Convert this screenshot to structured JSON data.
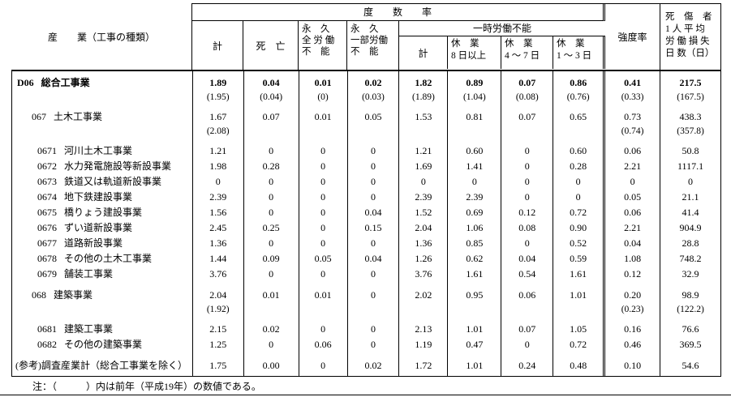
{
  "header": {
    "industry": "産　　業（工事の種類）",
    "frequency_group": "度　　数　　率",
    "col_total": "計",
    "col_death": "死　亡",
    "col_perm_total": "永　久\n全 労 働\n不　能",
    "col_perm_partial": "永　久\n一部労働\n不　能",
    "temp_group": "一時労働不能",
    "col_temp_total": "計",
    "col_temp_8plus": "休　業\n8 日以上",
    "col_temp_4to7": "休　業\n4 ～ 7 日",
    "col_temp_1to3": "休　業\n1 ～ 3 日",
    "col_severity": "強度率",
    "col_days_lost": "死　傷　者\n1 人 平 均\n労 働 損 失\n日 数（日）"
  },
  "rows": [
    {
      "code": "D06",
      "name": "総合工事業",
      "level": "0",
      "bold": true,
      "gap": false,
      "values": [
        "1.89",
        "0.04",
        "0.01",
        "0.02",
        "1.82",
        "0.89",
        "0.07",
        "0.86",
        "0.41",
        "217.5"
      ],
      "prev": [
        "(1.95)",
        "(0.04)",
        "(0)",
        "(0.03)",
        "(1.89)",
        "(1.04)",
        "(0.08)",
        "(0.76)",
        "(0.33)",
        "(167.5)"
      ]
    },
    {
      "code": "067",
      "name": "土木工事業",
      "level": "1",
      "bold": false,
      "gap": true,
      "values": [
        "1.67",
        "0.07",
        "0.01",
        "0.05",
        "1.53",
        "0.81",
        "0.07",
        "0.65",
        "0.73",
        "438.3"
      ],
      "prev": [
        "(2.08)",
        "",
        "",
        "",
        "",
        "",
        "",
        "",
        "(0.74)",
        "(357.8)"
      ]
    },
    {
      "code": "0671",
      "name": "河川土木工事業",
      "level": "2",
      "bold": false,
      "gap": true,
      "values": [
        "1.21",
        "0",
        "0",
        "0",
        "1.21",
        "0.60",
        "0",
        "0.60",
        "0.06",
        "50.8"
      ]
    },
    {
      "code": "0672",
      "name": "水力発電施設等新設事業",
      "level": "2",
      "bold": false,
      "gap": false,
      "values": [
        "1.98",
        "0.28",
        "0",
        "0",
        "1.69",
        "1.41",
        "0",
        "0.28",
        "2.21",
        "1117.1"
      ]
    },
    {
      "code": "0673",
      "name": "鉄道又は軌道新設事業",
      "level": "2",
      "bold": false,
      "gap": false,
      "values": [
        "0",
        "0",
        "0",
        "0",
        "0",
        "0",
        "0",
        "0",
        "0",
        "0"
      ]
    },
    {
      "code": "0674",
      "name": "地下鉄建設事業",
      "level": "2",
      "bold": false,
      "gap": false,
      "values": [
        "2.39",
        "0",
        "0",
        "0",
        "2.39",
        "2.39",
        "0",
        "0",
        "0.05",
        "21.1"
      ]
    },
    {
      "code": "0675",
      "name": "橋りょう建設事業",
      "level": "2",
      "bold": false,
      "gap": false,
      "values": [
        "1.56",
        "0",
        "0",
        "0.04",
        "1.52",
        "0.69",
        "0.12",
        "0.72",
        "0.06",
        "41.4"
      ]
    },
    {
      "code": "0676",
      "name": "ずい道新設事業",
      "level": "2",
      "bold": false,
      "gap": false,
      "values": [
        "2.45",
        "0.25",
        "0",
        "0.15",
        "2.04",
        "1.06",
        "0.08",
        "0.90",
        "2.21",
        "904.9"
      ]
    },
    {
      "code": "0677",
      "name": "道路新設事業",
      "level": "2",
      "bold": false,
      "gap": false,
      "values": [
        "1.36",
        "0",
        "0",
        "0",
        "1.36",
        "0.85",
        "0",
        "0.52",
        "0.04",
        "28.8"
      ]
    },
    {
      "code": "0678",
      "name": "その他の土木工事業",
      "level": "2",
      "bold": false,
      "gap": false,
      "values": [
        "1.44",
        "0.09",
        "0.05",
        "0.04",
        "1.26",
        "0.62",
        "0.04",
        "0.59",
        "1.08",
        "748.2"
      ]
    },
    {
      "code": "0679",
      "name": "舗装工事業",
      "level": "2",
      "bold": false,
      "gap": false,
      "values": [
        "3.76",
        "0",
        "0",
        "0",
        "3.76",
        "1.61",
        "0.54",
        "1.61",
        "0.12",
        "32.9"
      ]
    },
    {
      "code": "068",
      "name": "建築事業",
      "level": "1",
      "bold": false,
      "gap": true,
      "values": [
        "2.04",
        "0.01",
        "0.01",
        "0",
        "2.02",
        "0.95",
        "0.06",
        "1.01",
        "0.20",
        "98.9"
      ],
      "prev": [
        "(1.92)",
        "",
        "",
        "",
        "",
        "",
        "",
        "",
        "(0.23)",
        "(122.2)"
      ]
    },
    {
      "code": "0681",
      "name": "建築工事業",
      "level": "2",
      "bold": false,
      "gap": true,
      "values": [
        "2.15",
        "0.02",
        "0",
        "0",
        "2.13",
        "1.01",
        "0.07",
        "1.05",
        "0.16",
        "76.6"
      ]
    },
    {
      "code": "0682",
      "name": "その他の建築事業",
      "level": "2",
      "bold": false,
      "gap": false,
      "values": [
        "1.25",
        "0",
        "0.06",
        "0",
        "1.19",
        "0.47",
        "0",
        "0.72",
        "0.46",
        "369.5"
      ]
    },
    {
      "code": "",
      "name": "(参考)調査産業計（総合工事業を除く）",
      "level": "ref",
      "bold": false,
      "gap": true,
      "values": [
        "1.75",
        "0.00",
        "0",
        "0.02",
        "1.72",
        "1.01",
        "0.24",
        "0.48",
        "0.10",
        "54.6"
      ]
    }
  ],
  "note": "注：（　　　）内は前年（平成19年）の数値である。"
}
